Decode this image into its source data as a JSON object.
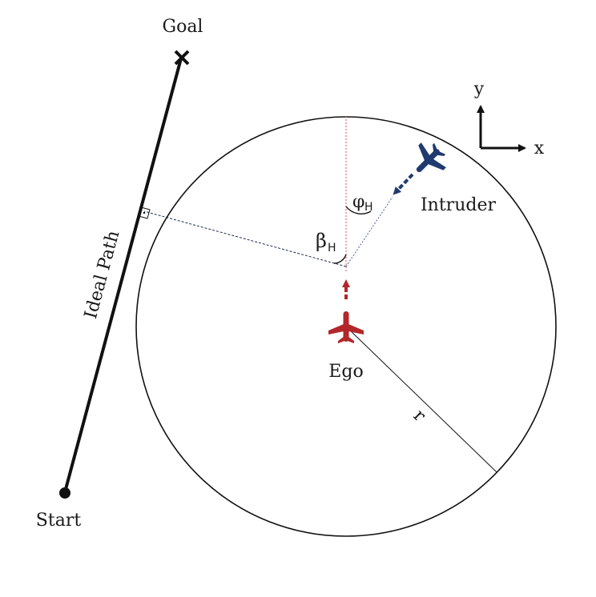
{
  "labels": {
    "goal": "Goal",
    "start": "Start",
    "ideal_path": "Ideal Path",
    "ego": "Ego",
    "intruder": "Intruder",
    "radius": "r",
    "axis_y": "y",
    "axis_x": "x",
    "beta": "β",
    "phi": "φ",
    "beta_sub": "H",
    "phi_sub": "H"
  },
  "colors": {
    "ego": "#b3262a",
    "intruder": "#1f3a6e",
    "line": "#111111",
    "ego_ray": "#d9534f",
    "intruder_ray": "#4a5fa6"
  },
  "icons": {
    "ego": "airplane-icon",
    "intruder": "airplane-icon",
    "goal": "cross-marker-icon",
    "start": "dot-marker-icon"
  }
}
